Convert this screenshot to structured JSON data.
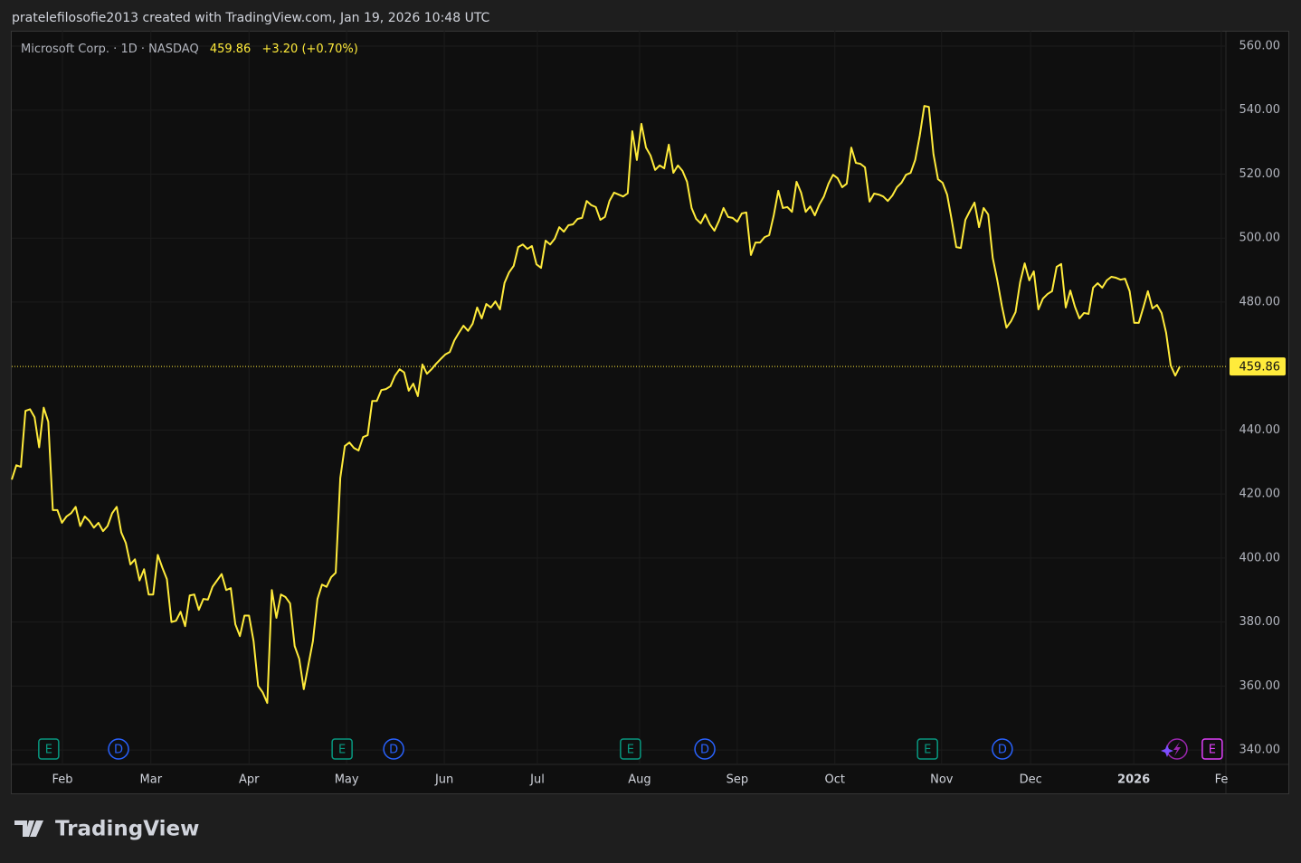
{
  "header": {
    "text": "pratelefilosofie2013 created with TradingView.com, Jan 19, 2026 10:48 UTC"
  },
  "footer": {
    "brand": "TradingView"
  },
  "chart_data": {
    "type": "line",
    "legend": {
      "symbol": "Microsoft Corp. · 1D · NASDAQ",
      "price": "459.86",
      "change": "+3.20 (+0.70%)"
    },
    "last_price": 459.86,
    "color": "#ffeb3b",
    "grid": true,
    "ylim": [
      335.5,
      564.8
    ],
    "yticks": [
      {
        "value": 340,
        "label": "340.00"
      },
      {
        "value": 360,
        "label": "360.00"
      },
      {
        "value": 380,
        "label": "380.00"
      },
      {
        "value": 400,
        "label": "400.00"
      },
      {
        "value": 420,
        "label": "420.00"
      },
      {
        "value": 440,
        "label": "440.00"
      },
      {
        "value": 480,
        "label": "480.00"
      },
      {
        "value": 500,
        "label": "500.00"
      },
      {
        "value": 520,
        "label": "520.00"
      },
      {
        "value": 540,
        "label": "540.00"
      },
      {
        "value": 560,
        "label": "560.00"
      }
    ],
    "xlim": [
      0,
      266.1
    ],
    "xticks": [
      {
        "value": 11.1,
        "label": "Feb"
      },
      {
        "value": 30.5,
        "label": "Mar"
      },
      {
        "value": 52,
        "label": "Apr"
      },
      {
        "value": 73.4,
        "label": "May"
      },
      {
        "value": 94.8,
        "label": "Jun"
      },
      {
        "value": 115.2,
        "label": "Jul"
      },
      {
        "value": 137.6,
        "label": "Aug"
      },
      {
        "value": 159,
        "label": "Sep"
      },
      {
        "value": 180.4,
        "label": "Oct"
      },
      {
        "value": 203.8,
        "label": "Nov"
      },
      {
        "value": 223.3,
        "label": "Dec"
      },
      {
        "value": 245.9,
        "label": "2026"
      },
      {
        "value": 265.1,
        "label": "Fe"
      }
    ],
    "events": [
      {
        "x": 8.1,
        "label": "E",
        "color": "#089981",
        "shape": "square"
      },
      {
        "x": 23.4,
        "label": "D",
        "color": "#2962ff",
        "shape": "circle"
      },
      {
        "x": 72.4,
        "label": "E",
        "color": "#089981",
        "shape": "square"
      },
      {
        "x": 83.7,
        "label": "D",
        "color": "#2962ff",
        "shape": "circle"
      },
      {
        "x": 135.6,
        "label": "E",
        "color": "#089981",
        "shape": "square"
      },
      {
        "x": 151.9,
        "label": "D",
        "color": "#2962ff",
        "shape": "circle"
      },
      {
        "x": 200.7,
        "label": "E",
        "color": "#089981",
        "shape": "square"
      },
      {
        "x": 217.1,
        "label": "D",
        "color": "#2962ff",
        "shape": "circle"
      },
      {
        "x": 263.1,
        "label": "E",
        "color": "#e040fb",
        "shape": "square"
      }
    ],
    "values": [
      424.5,
      429,
      428.5,
      446,
      446.5,
      444,
      434.6,
      447,
      442.6,
      415,
      415,
      411,
      413,
      414,
      416,
      410,
      413,
      411.6,
      409.5,
      411,
      408.4,
      410,
      414,
      416,
      408,
      404.7,
      398,
      399.6,
      393,
      396.5,
      388.6,
      388.6,
      401,
      397,
      393.4,
      380,
      380.4,
      383.2,
      378.7,
      388.3,
      388.6,
      383.8,
      387.2,
      387,
      391,
      393,
      395,
      390,
      390.6,
      379.3,
      375.6,
      382,
      382,
      374,
      360,
      358,
      354.7,
      390,
      381.3,
      388.6,
      387.8,
      385.8,
      372.5,
      368.5,
      359,
      366.5,
      374,
      387.2,
      391.7,
      391,
      394,
      395.4,
      425,
      435,
      436.1,
      434.4,
      433.6,
      437.8,
      438.4,
      449.1,
      449.1,
      452.5,
      452.8,
      453.7,
      457,
      459,
      458,
      452.3,
      454.5,
      450.6,
      460.5,
      457.6,
      459,
      460.7,
      462.2,
      463.6,
      464.4,
      468,
      470.4,
      472.6,
      471,
      473.2,
      478.3,
      474.9,
      479.4,
      478.3,
      480.2,
      477.7,
      486,
      489.3,
      491.3,
      497.2,
      498,
      496.6,
      497.5,
      491.8,
      490.7,
      499.2,
      498,
      499.8,
      503.4,
      502,
      504,
      504.3,
      506,
      506.3,
      511.6,
      510.3,
      509.7,
      505.7,
      506.6,
      511.6,
      514.2,
      513.6,
      513,
      514,
      533.4,
      524.4,
      535.7,
      528.3,
      525.8,
      521.3,
      522.7,
      521.8,
      529.2,
      520.4,
      522.7,
      521,
      517.6,
      509.4,
      506,
      504.6,
      507.4,
      504.3,
      502.3,
      505.4,
      509.4,
      506.6,
      506.3,
      505.1,
      507.7,
      508,
      494.7,
      498.6,
      498.6,
      500.3,
      500.9,
      507.1,
      514.8,
      509.4,
      509.7,
      508.2,
      517.6,
      514.2,
      508.2,
      509.9,
      507.1,
      510.5,
      513,
      517,
      519.8,
      518.7,
      515.9,
      517,
      528.3,
      523.5,
      523.2,
      522.1,
      511.4,
      513.9,
      513.6,
      513,
      511.6,
      513.3,
      515.9,
      517.3,
      519.8,
      520.4,
      524.4,
      532,
      541.3,
      541,
      526.3,
      518.4,
      517.3,
      513.6,
      505.7,
      497.2,
      496.9,
      505.7,
      508.5,
      511.1,
      503.4,
      509.4,
      507.4,
      493.8,
      486.8,
      478.8,
      472,
      474,
      476.9,
      486.2,
      492.1,
      486.8,
      489.6,
      477.7,
      481.1,
      482.5,
      483.4,
      491,
      491.9,
      478.3,
      483.6,
      478.6,
      474.9,
      476.6,
      476.3,
      484.5,
      485.9,
      484.5,
      486.8,
      487.9,
      487.6,
      487,
      487.3,
      483.4,
      473.5,
      473.5,
      478.3,
      483.4,
      478,
      479.1,
      476.6,
      470.4,
      460.2,
      457,
      459.86
    ]
  }
}
